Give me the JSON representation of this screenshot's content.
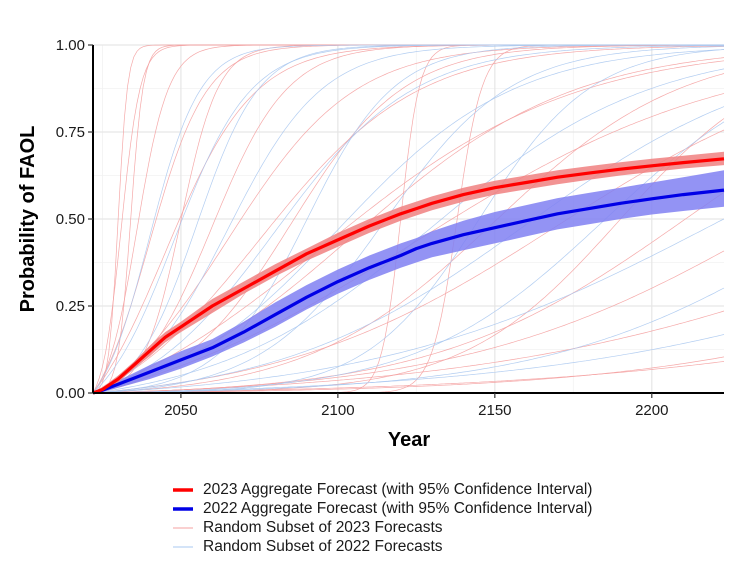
{
  "chart_data": {
    "type": "line",
    "title": "",
    "xlabel": "Year",
    "ylabel": "Probability of FAOL",
    "xlim": [
      2022,
      2223
    ],
    "ylim": [
      0,
      1
    ],
    "x_ticks": [
      "2050",
      "2100",
      "2150",
      "2200"
    ],
    "y_ticks": [
      "0.00",
      "0.25",
      "0.50",
      "0.75",
      "1.00"
    ],
    "grid": true,
    "legend_position": "bottom",
    "series": [
      {
        "name": "2023 Aggregate Forecast (with 95% Confidence Interval)",
        "color": "#ff0000",
        "band_color": "#f08080",
        "x": [
          2022,
          2025,
          2030,
          2035,
          2040,
          2045,
          2050,
          2060,
          2070,
          2080,
          2090,
          2100,
          2110,
          2120,
          2125,
          2130,
          2140,
          2150,
          2160,
          2170,
          2180,
          2190,
          2200,
          2210,
          2223
        ],
        "y": [
          0.0,
          0.01,
          0.04,
          0.08,
          0.12,
          0.16,
          0.19,
          0.25,
          0.3,
          0.35,
          0.4,
          0.44,
          0.48,
          0.515,
          0.53,
          0.545,
          0.57,
          0.59,
          0.605,
          0.62,
          0.632,
          0.643,
          0.653,
          0.662,
          0.673
        ],
        "lower": [
          0.0,
          0.005,
          0.03,
          0.07,
          0.105,
          0.145,
          0.175,
          0.23,
          0.285,
          0.335,
          0.38,
          0.42,
          0.46,
          0.495,
          0.51,
          0.525,
          0.55,
          0.57,
          0.585,
          0.6,
          0.613,
          0.625,
          0.635,
          0.645,
          0.655
        ],
        "upper": [
          0.0,
          0.015,
          0.05,
          0.09,
          0.135,
          0.175,
          0.205,
          0.27,
          0.32,
          0.37,
          0.415,
          0.46,
          0.5,
          0.535,
          0.55,
          0.565,
          0.59,
          0.61,
          0.625,
          0.64,
          0.652,
          0.663,
          0.673,
          0.682,
          0.693
        ]
      },
      {
        "name": "2022 Aggregate Forecast (with 95% Confidence Interval)",
        "color": "#0000e6",
        "band_color": "#8080f2",
        "x": [
          2022,
          2025,
          2030,
          2040,
          2050,
          2060,
          2070,
          2080,
          2090,
          2100,
          2110,
          2120,
          2125,
          2130,
          2140,
          2150,
          2160,
          2170,
          2180,
          2190,
          2200,
          2210,
          2223
        ],
        "y": [
          0.0,
          0.008,
          0.025,
          0.06,
          0.095,
          0.13,
          0.175,
          0.225,
          0.275,
          0.32,
          0.36,
          0.395,
          0.415,
          0.43,
          0.455,
          0.475,
          0.495,
          0.515,
          0.53,
          0.545,
          0.558,
          0.57,
          0.583
        ],
        "lower": [
          0.0,
          0.003,
          0.015,
          0.04,
          0.07,
          0.105,
          0.145,
          0.19,
          0.24,
          0.285,
          0.325,
          0.36,
          0.375,
          0.39,
          0.41,
          0.43,
          0.45,
          0.47,
          0.485,
          0.5,
          0.513,
          0.523,
          0.535
        ],
        "upper": [
          0.0,
          0.013,
          0.035,
          0.08,
          0.12,
          0.155,
          0.205,
          0.26,
          0.31,
          0.355,
          0.395,
          0.43,
          0.445,
          0.465,
          0.495,
          0.52,
          0.54,
          0.56,
          0.575,
          0.59,
          0.605,
          0.62,
          0.64
        ]
      },
      {
        "name": "Random Subset of 2023 Forecasts",
        "color": "#f4a0a0",
        "curves": [
          {
            "mid": 2030,
            "width": 1.5
          },
          {
            "mid": 2031,
            "width": 3
          },
          {
            "mid": 2034,
            "width": 2
          },
          {
            "mid": 2036,
            "width": 5
          },
          {
            "mid": 2040,
            "width": 9
          },
          {
            "mid": 2045,
            "width": 14
          },
          {
            "mid": 2050,
            "width": 6
          },
          {
            "mid": 2060,
            "width": 12
          },
          {
            "mid": 2065,
            "width": 20
          },
          {
            "mid": 2075,
            "width": 25
          },
          {
            "mid": 2085,
            "width": 18
          },
          {
            "mid": 2095,
            "width": 40
          },
          {
            "mid": 2105,
            "width": 35
          },
          {
            "mid": 2120,
            "width": 3
          },
          {
            "mid": 2125,
            "width": 50
          },
          {
            "mid": 2138,
            "width": 4
          },
          {
            "mid": 2150,
            "width": 30
          },
          {
            "mid": 2170,
            "width": 45
          },
          {
            "mid": 2190,
            "width": 25
          },
          {
            "mid": 2210,
            "width": 40
          },
          {
            "mid": 2240,
            "width": 50
          },
          {
            "mid": 2300,
            "width": 70
          },
          {
            "mid": 2350,
            "width": 60
          },
          {
            "mid": 2400,
            "width": 80
          }
        ]
      },
      {
        "name": "Random Subset of 2022 Forecasts",
        "color": "#aac8f0",
        "curves": [
          {
            "mid": 2040,
            "width": 8
          },
          {
            "mid": 2048,
            "width": 12
          },
          {
            "mid": 2055,
            "width": 10
          },
          {
            "mid": 2065,
            "width": 15
          },
          {
            "mid": 2080,
            "width": 22
          },
          {
            "mid": 2090,
            "width": 14
          },
          {
            "mid": 2100,
            "width": 28
          },
          {
            "mid": 2115,
            "width": 20
          },
          {
            "mid": 2130,
            "width": 35
          },
          {
            "mid": 2145,
            "width": 18
          },
          {
            "mid": 2160,
            "width": 40
          },
          {
            "mid": 2185,
            "width": 30
          },
          {
            "mid": 2220,
            "width": 55
          },
          {
            "mid": 2260,
            "width": 45
          },
          {
            "mid": 2330,
            "width": 70
          }
        ]
      }
    ]
  }
}
